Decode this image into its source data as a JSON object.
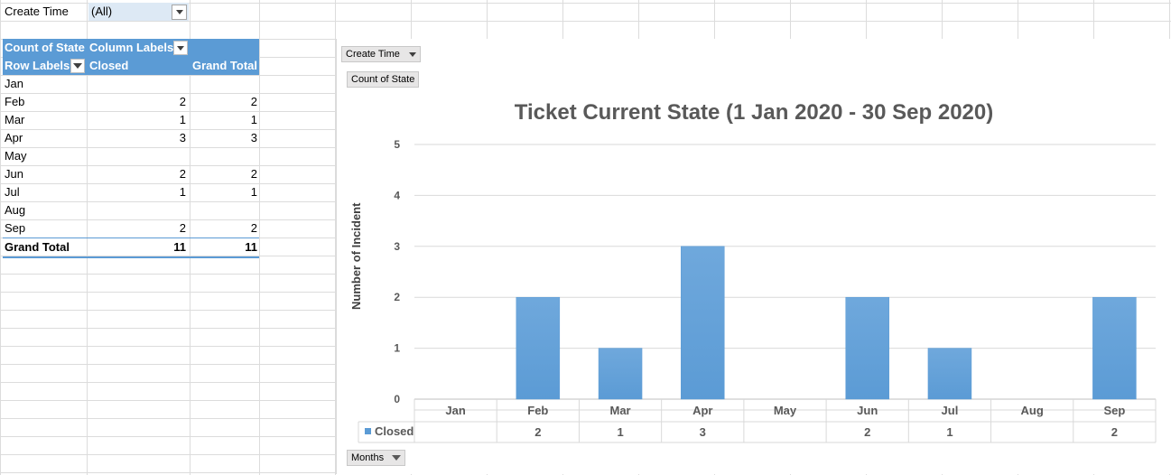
{
  "filter": {
    "label": "Create Time",
    "value": "(All)"
  },
  "pivot": {
    "header1": {
      "c1": "Count of State",
      "c2": "Column Labels"
    },
    "header2": {
      "c1": "Row Labels",
      "c2": "Closed",
      "c3": "Grand Total"
    },
    "rows": [
      {
        "label": "Jan",
        "closed": "",
        "total": ""
      },
      {
        "label": "Feb",
        "closed": "2",
        "total": "2"
      },
      {
        "label": "Mar",
        "closed": "1",
        "total": "1"
      },
      {
        "label": "Apr",
        "closed": "3",
        "total": "3"
      },
      {
        "label": "May",
        "closed": "",
        "total": ""
      },
      {
        "label": "Jun",
        "closed": "2",
        "total": "2"
      },
      {
        "label": "Jul",
        "closed": "1",
        "total": "1"
      },
      {
        "label": "Aug",
        "closed": "",
        "total": ""
      },
      {
        "label": "Sep",
        "closed": "2",
        "total": "2"
      }
    ],
    "grand_total": {
      "label": "Grand Total",
      "closed": "11",
      "total": "11"
    }
  },
  "chart_buttons": {
    "filter": "Create Time",
    "values": "Count of State",
    "axis": "Months"
  },
  "colors": {
    "bar": "#5b9bd5",
    "header": "#5b9bd5",
    "filter_bg": "#dde9f5"
  },
  "chart_data": {
    "type": "bar",
    "title": "Ticket Current State (1 Jan 2020 - 30 Sep 2020)",
    "ylabel": "Number of Incident",
    "xlabel": "",
    "categories": [
      "Jan",
      "Feb",
      "Mar",
      "Apr",
      "May",
      "Jun",
      "Jul",
      "Aug",
      "Sep"
    ],
    "series": [
      {
        "name": "Closed",
        "values": [
          null,
          2,
          1,
          3,
          null,
          2,
          1,
          null,
          2
        ]
      }
    ],
    "ylim": [
      0,
      5
    ],
    "yticks": [
      0,
      1,
      2,
      3,
      4,
      5
    ],
    "grid": true,
    "data_table": true
  }
}
